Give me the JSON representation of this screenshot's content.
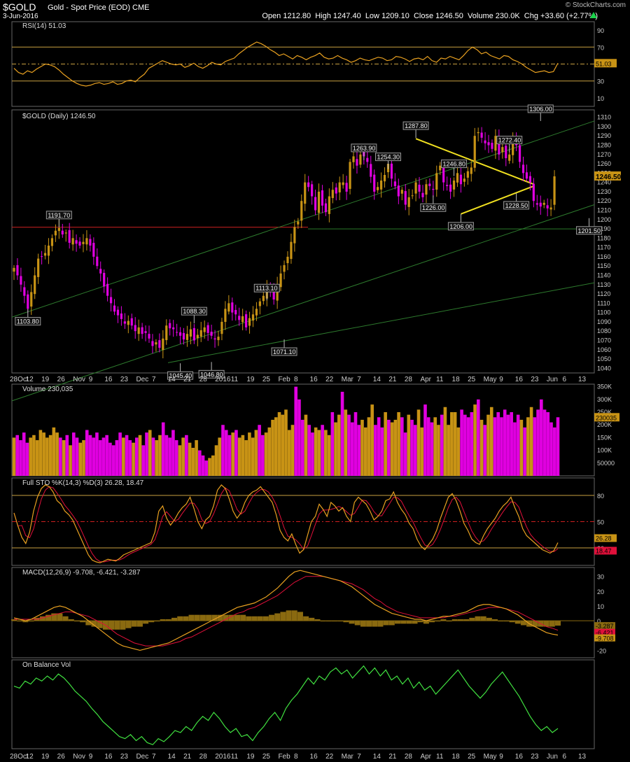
{
  "header": {
    "symbol": "$GOLD",
    "subtitle": "Gold - Spot Price (EOD)  CME",
    "date": "3-Jun-2016",
    "open_label": "Open",
    "open": "1212.80",
    "high_label": "High",
    "high": "1247.40",
    "low_label": "Low",
    "low": "1209.10",
    "close_label": "Close",
    "close": "1246.50",
    "volume_label": "Volume",
    "volume": "230.0K",
    "chg_label": "Chg",
    "chg": "+33.60 (+2.77%)",
    "credit": "© StockCharts.com"
  },
  "colors": {
    "up": "#c89315",
    "down": "#e000e0",
    "ma": "#e8a020",
    "signal": "#e0103a",
    "obv": "#40e040",
    "channel": "#2d7a2d"
  },
  "chart_data": [
    {
      "type": "line",
      "panel": "RSI",
      "title": "RSI(14) 51.03",
      "last_value": "51.03",
      "ticks": [
        "90",
        "70",
        "50",
        "30",
        "10"
      ],
      "ylim": [
        0,
        100
      ],
      "levels": [
        70,
        30
      ],
      "values": [
        45,
        40,
        38,
        42,
        40,
        44,
        47,
        50,
        49,
        47,
        43,
        38,
        34,
        30,
        27,
        25,
        24,
        25,
        27,
        28,
        26,
        27,
        29,
        26,
        27,
        30,
        31,
        29,
        34,
        38,
        45,
        48,
        51,
        54,
        52,
        50,
        49,
        50,
        46,
        48,
        51,
        47,
        45,
        48,
        52,
        50,
        49,
        53,
        55,
        57,
        62,
        66,
        70,
        73,
        76,
        74,
        71,
        67,
        64,
        60,
        62,
        59,
        56,
        60,
        58,
        55,
        58,
        60,
        63,
        58,
        56,
        57,
        60,
        57,
        55,
        52,
        54,
        57,
        55,
        54,
        56,
        58,
        57,
        54,
        55,
        59,
        58,
        56,
        53,
        56,
        57,
        55,
        59,
        54,
        52,
        57,
        56,
        59,
        57,
        55,
        60,
        66,
        70,
        67,
        62,
        64,
        60,
        58,
        56,
        60,
        59,
        55,
        53,
        50,
        46,
        43,
        40,
        41,
        42,
        40,
        41,
        51
      ]
    },
    {
      "type": "candlestick",
      "panel": "Price",
      "title": "$GOLD (Daily) 1246.50",
      "last_value": "1246.50",
      "ylim": [
        1035,
        1318
      ],
      "ticks": [
        "1310",
        "1300",
        "1290",
        "1280",
        "1270",
        "1260",
        "1250",
        "1240",
        "1230",
        "1220",
        "1210",
        "1200",
        "1190",
        "1180",
        "1170",
        "1160",
        "1150",
        "1140",
        "1130",
        "1120",
        "1110",
        "1100",
        "1090",
        "1080",
        "1070",
        "1060",
        "1050",
        "1040"
      ],
      "x_labels": [
        "28Oct",
        "12",
        "19",
        "26",
        "Nov",
        "9",
        "16",
        "23",
        "Dec",
        "7",
        "14",
        "21",
        "28",
        "2016",
        "11",
        "19",
        "25",
        "Feb",
        "8",
        "16",
        "22",
        "Mar",
        "7",
        "14",
        "21",
        "28",
        "Apr",
        "11",
        "18",
        "25",
        "May",
        "9",
        "16",
        "23",
        "Jun",
        "6",
        "13"
      ],
      "closes": [
        1148,
        1140,
        1130,
        1118,
        1104,
        1122,
        1140,
        1158,
        1160,
        1164,
        1172,
        1180,
        1188,
        1191,
        1184,
        1186,
        1175,
        1180,
        1174,
        1172,
        1176,
        1180,
        1172,
        1160,
        1150,
        1142,
        1128,
        1118,
        1110,
        1101,
        1097,
        1093,
        1088,
        1091,
        1086,
        1080,
        1084,
        1077,
        1078,
        1072,
        1064,
        1068,
        1062,
        1072,
        1086,
        1083,
        1082,
        1079,
        1075,
        1071,
        1077,
        1082,
        1070,
        1076,
        1081,
        1084,
        1078,
        1075,
        1071,
        1074,
        1090,
        1104,
        1110,
        1100,
        1098,
        1092,
        1096,
        1084,
        1094,
        1098,
        1104,
        1112,
        1118,
        1126,
        1124,
        1114,
        1130,
        1142,
        1151,
        1160,
        1176,
        1192,
        1198,
        1220,
        1240,
        1235,
        1225,
        1210,
        1230,
        1215,
        1208,
        1225,
        1232,
        1228,
        1240,
        1240,
        1230,
        1262,
        1268,
        1258,
        1270,
        1268,
        1262,
        1246,
        1230,
        1235,
        1242,
        1248,
        1260,
        1244,
        1236,
        1225,
        1232,
        1216,
        1224,
        1226,
        1240,
        1230,
        1224,
        1238,
        1236,
        1232,
        1250,
        1258,
        1240,
        1236,
        1230,
        1242,
        1250,
        1238,
        1244,
        1252,
        1256,
        1290,
        1294,
        1288,
        1282,
        1280,
        1276,
        1290,
        1270,
        1278,
        1266,
        1270,
        1285,
        1280,
        1262,
        1250,
        1244,
        1240,
        1220,
        1216,
        1214,
        1218,
        1212,
        1213,
        1246.5
      ],
      "annotations": [
        {
          "label": "1103.80",
          "value": 1103.8,
          "i": 4,
          "pos": "below"
        },
        {
          "label": "1191.70",
          "value": 1191.7,
          "i": 13,
          "pos": "above"
        },
        {
          "label": "1088.30",
          "value": 1088.3,
          "i": 52,
          "pos": "above"
        },
        {
          "label": "1045.40",
          "value": 1045.4,
          "i": 48,
          "pos": "below"
        },
        {
          "label": "1046.80",
          "value": 1046.8,
          "i": 57,
          "pos": "below"
        },
        {
          "label": "1113.10",
          "value": 1113.1,
          "i": 73,
          "pos": "above"
        },
        {
          "label": "1071.10",
          "value": 1071.1,
          "i": 78,
          "pos": "below"
        },
        {
          "label": "1263.90",
          "value": 1263.9,
          "i": 101,
          "pos": "above"
        },
        {
          "label": "1254.30",
          "value": 1254.3,
          "i": 108,
          "pos": "above"
        },
        {
          "label": "1287.80",
          "value": 1287.8,
          "i": 116,
          "pos": "above"
        },
        {
          "label": "1226.00",
          "value": 1226.0,
          "i": 121,
          "pos": "below"
        },
        {
          "label": "1246.80",
          "value": 1246.8,
          "i": 127,
          "pos": "above"
        },
        {
          "label": "1206.00",
          "value": 1206.0,
          "i": 129,
          "pos": "below"
        },
        {
          "label": "1272.40",
          "value": 1272.4,
          "i": 143,
          "pos": "above"
        },
        {
          "label": "1228.50",
          "value": 1228.5,
          "i": 145,
          "pos": "below"
        },
        {
          "label": "1306.00",
          "value": 1306.0,
          "i": 152,
          "pos": "above"
        },
        {
          "label": "1201.50",
          "value": 1201.5,
          "i": 166,
          "pos": "below"
        }
      ]
    },
    {
      "type": "bar",
      "panel": "Volume",
      "title": "Volume 230,035",
      "last_value": "230035",
      "ticks": [
        "350K",
        "300K",
        "250K",
        "200K",
        "150K",
        "100K",
        "50000"
      ],
      "ylim": [
        0,
        360000
      ],
      "values": [
        150000,
        160000,
        140000,
        170000,
        130000,
        150000,
        160000,
        140000,
        180000,
        170000,
        150000,
        160000,
        190000,
        170000,
        150000,
        140000,
        160000,
        120000,
        170000,
        150000,
        130000,
        140000,
        180000,
        160000,
        150000,
        170000,
        140000,
        150000,
        160000,
        130000,
        120000,
        140000,
        170000,
        150000,
        160000,
        140000,
        130000,
        150000,
        160000,
        120000,
        170000,
        180000,
        150000,
        140000,
        160000,
        210000,
        160000,
        150000,
        180000,
        140000,
        120000,
        150000,
        160000,
        130000,
        110000,
        140000,
        100000,
        80000,
        60000,
        70000,
        80000,
        120000,
        150000,
        200000,
        180000,
        160000,
        170000,
        180000,
        150000,
        160000,
        140000,
        170000,
        150000,
        180000,
        200000,
        160000,
        170000,
        190000,
        220000,
        230000,
        250000,
        240000,
        260000,
        180000,
        200000,
        350000,
        300000,
        220000,
        240000,
        200000,
        170000,
        190000,
        180000,
        200000,
        180000,
        160000,
        250000,
        210000,
        240000,
        330000,
        260000,
        240000,
        210000,
        250000,
        200000,
        220000,
        190000,
        230000,
        280000,
        200000,
        230000,
        190000,
        250000,
        220000,
        210000,
        220000,
        250000,
        230000,
        170000,
        240000,
        220000,
        200000,
        260000,
        190000,
        280000,
        230000,
        210000,
        230000,
        200000,
        240000,
        270000,
        200000,
        250000,
        250000,
        190000,
        260000,
        240000,
        230000,
        250000,
        280000,
        300000,
        220000,
        200000,
        240000,
        270000,
        230000,
        250000,
        230000,
        260000,
        240000,
        250000,
        210000,
        240000,
        220000,
        190000,
        230000,
        270000,
        230000,
        260000,
        300000,
        260000,
        250000,
        210000,
        190000,
        230035
      ],
      "up_flags": "ud"
    },
    {
      "type": "line",
      "panel": "Stochastic",
      "title": "Full STO %K(14,3) %D(3) 26.28, 18.47",
      "k_label": "26.28",
      "d_label": "18.47",
      "ticks": [
        "80",
        "50",
        "20"
      ],
      "ylim": [
        0,
        100
      ],
      "levels": [
        80,
        50,
        20
      ],
      "k": [
        60,
        45,
        32,
        25,
        38,
        62,
        78,
        88,
        92,
        90,
        84,
        74,
        70,
        62,
        58,
        52,
        42,
        32,
        22,
        12,
        6,
        4,
        3,
        5,
        7,
        6,
        5,
        8,
        12,
        14,
        16,
        18,
        20,
        22,
        24,
        26,
        38,
        62,
        68,
        54,
        46,
        52,
        60,
        66,
        70,
        78,
        65,
        50,
        42,
        52,
        56,
        68,
        86,
        92,
        88,
        76,
        62,
        54,
        60,
        72,
        80,
        84,
        86,
        90,
        84,
        78,
        72,
        58,
        40,
        32,
        28,
        36,
        24,
        14,
        18,
        34,
        50,
        56,
        70,
        64,
        56,
        72,
        68,
        62,
        66,
        56,
        50,
        72,
        78,
        74,
        70,
        62,
        52,
        56,
        62,
        74,
        76,
        84,
        72,
        64,
        58,
        48,
        42,
        30,
        22,
        18,
        24,
        30,
        40,
        54,
        66,
        78,
        82,
        74,
        62,
        48,
        40,
        30,
        26,
        24,
        34,
        42,
        48,
        54,
        62,
        68,
        72,
        78,
        66,
        56,
        42,
        34,
        30,
        26,
        22,
        18,
        16,
        14,
        17,
        26
      ]
    },
    {
      "type": "line",
      "panel": "MACD",
      "title": "MACD(12,26,9) -9.708, -6.421, -3.287",
      "macd_label": "-9.708",
      "signal_label": "-6.421",
      "hist_label": "-3.287",
      "ticks": [
        "30",
        "20",
        "10",
        "0",
        "-10",
        "-20"
      ],
      "ylim": [
        -25,
        36
      ],
      "macd": [
        2,
        1,
        0,
        1,
        3,
        5,
        7,
        9,
        10,
        9,
        7,
        5,
        3,
        0,
        -3,
        -6,
        -9,
        -12,
        -15,
        -17,
        -18,
        -19,
        -20,
        -19,
        -18,
        -17,
        -16,
        -15,
        -13,
        -11,
        -9,
        -7,
        -5,
        -3,
        -1,
        1,
        3,
        5,
        7,
        9,
        10,
        11,
        12,
        14,
        16,
        19,
        22,
        26,
        30,
        33,
        34,
        33,
        32,
        31,
        30,
        29,
        28,
        27,
        25,
        23,
        20,
        17,
        14,
        11,
        9,
        7,
        5,
        4,
        3,
        2,
        1,
        1,
        0,
        1,
        2,
        3,
        3,
        4,
        5,
        6,
        8,
        10,
        11,
        11,
        10,
        9,
        8,
        6,
        4,
        1,
        -2,
        -4,
        -6,
        -8,
        -9,
        -9.7
      ],
      "signal": [
        1,
        1,
        1,
        1,
        1,
        2,
        3,
        4,
        5,
        6,
        6,
        5,
        4,
        3,
        1,
        -1,
        -3,
        -6,
        -9,
        -11,
        -13,
        -15,
        -16,
        -17,
        -17,
        -17,
        -17,
        -16,
        -15,
        -14,
        -12,
        -11,
        -9,
        -7,
        -5,
        -3,
        -1,
        1,
        3,
        5,
        6,
        8,
        9,
        11,
        13,
        15,
        17,
        20,
        23,
        26,
        28,
        30,
        30,
        30,
        30,
        29,
        28,
        27,
        26,
        25,
        23,
        21,
        18,
        15,
        13,
        10,
        8,
        6,
        5,
        4,
        3,
        2,
        2,
        2,
        2,
        2,
        3,
        3,
        4,
        5,
        6,
        7,
        8,
        9,
        9,
        9,
        8,
        7,
        6,
        4,
        2,
        0,
        -2,
        -4,
        -5,
        -6.4
      ]
    },
    {
      "type": "line",
      "panel": "OBV",
      "title": "On Balance Vol",
      "values": [
        20,
        18,
        25,
        22,
        28,
        25,
        30,
        26,
        32,
        28,
        22,
        15,
        10,
        5,
        -2,
        -8,
        -15,
        -20,
        -25,
        -30,
        -32,
        -28,
        -34,
        -30,
        -36,
        -38,
        -32,
        -35,
        -30,
        -24,
        -26,
        -20,
        -24,
        -16,
        -10,
        -14,
        -6,
        -12,
        -20,
        -26,
        -22,
        -30,
        -28,
        -34,
        -26,
        -20,
        -12,
        -6,
        -14,
        -2,
        6,
        12,
        20,
        28,
        22,
        30,
        26,
        34,
        38,
        32,
        36,
        28,
        34,
        40,
        32,
        38,
        30,
        36,
        26,
        30,
        22,
        28,
        18,
        24,
        16,
        20,
        12,
        18,
        24,
        30,
        36,
        28,
        20,
        14,
        8,
        14,
        22,
        28,
        34,
        26,
        18,
        10,
        0,
        -10,
        -18,
        -24,
        -20,
        -26,
        -22
      ]
    }
  ]
}
